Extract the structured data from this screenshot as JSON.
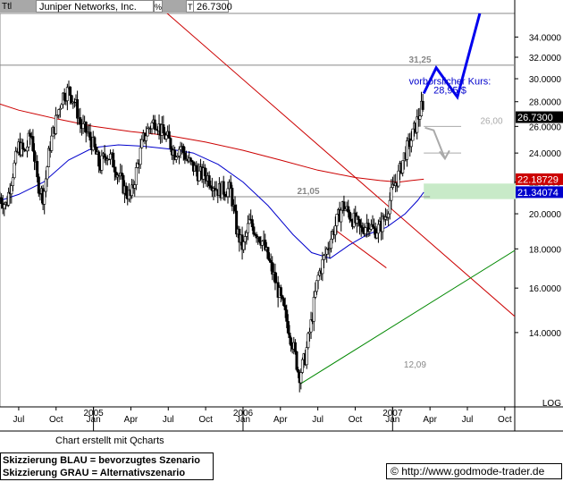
{
  "header": {
    "ticker_cell": "Ttl",
    "name": "Juniper Networks, Inc.",
    "unit_symbol": "%",
    "type_flag": "T",
    "last_price": "26.7300"
  },
  "footer": {
    "credit": "Chart erstellt mit Qcharts",
    "scenario_blue": "Skizzierung BLAU = bevorzugtes Szenario",
    "scenario_gray": "Skizzierung GRAU = Alternativszenario",
    "url": "http://www.godmode-trader.de"
  },
  "chart_data": {
    "type": "candlestick",
    "scale": "log",
    "ylim": [
      11.2,
      36.5
    ],
    "y_ticks": [
      14.0,
      16.0,
      18.0,
      20.0,
      22.0,
      24.0,
      26.0,
      28.0,
      30.0,
      32.0,
      34.0
    ],
    "y_tick_labels": [
      "14.0000",
      "16.0000",
      "18.0000",
      "20.0000",
      "22.0000",
      "24.0000",
      "26.0000",
      "28.0000",
      "30.0000",
      "32.0000",
      "34.0000"
    ],
    "y_axis_log_label": "LOG",
    "x_ticks": [
      {
        "label": "Jul",
        "month": 0
      },
      {
        "label": "Oct",
        "month": 3
      },
      {
        "label": "Jan",
        "month": 6
      },
      {
        "label": "Apr",
        "month": 9
      },
      {
        "label": "Jul",
        "month": 12
      },
      {
        "label": "Oct",
        "month": 15
      },
      {
        "label": "Jan",
        "month": 18
      },
      {
        "label": "Apr",
        "month": 21
      },
      {
        "label": "Jul",
        "month": 24
      },
      {
        "label": "Oct",
        "month": 27
      },
      {
        "label": "Jan",
        "month": 30
      },
      {
        "label": "Apr",
        "month": 33
      },
      {
        "label": "Jul",
        "month": 36
      },
      {
        "label": "Oct",
        "month": 39
      }
    ],
    "year_labels": [
      {
        "label": "2005",
        "month": 6
      },
      {
        "label": "2006",
        "month": 18
      },
      {
        "label": "2007",
        "month": 30
      }
    ],
    "price_keypoints": [
      [
        -1.5,
        21.0
      ],
      [
        -1.0,
        20.5
      ],
      [
        -0.5,
        22.5
      ],
      [
        0.0,
        24.5
      ],
      [
        0.5,
        24.0
      ],
      [
        1.0,
        25.5
      ],
      [
        1.5,
        22.0
      ],
      [
        2.0,
        21.0
      ],
      [
        2.5,
        24.5
      ],
      [
        3.0,
        26.5
      ],
      [
        3.5,
        28.5
      ],
      [
        4.0,
        29.0
      ],
      [
        4.5,
        28.0
      ],
      [
        5.0,
        26.0
      ],
      [
        5.5,
        25.5
      ],
      [
        6.0,
        24.5
      ],
      [
        6.5,
        23.0
      ],
      [
        7.0,
        24.0
      ],
      [
        7.5,
        23.5
      ],
      [
        8.0,
        22.5
      ],
      [
        8.5,
        21.5
      ],
      [
        9.0,
        21.0
      ],
      [
        9.5,
        23.0
      ],
      [
        10.0,
        25.0
      ],
      [
        10.5,
        26.0
      ],
      [
        11.0,
        26.5
      ],
      [
        11.5,
        25.5
      ],
      [
        12.0,
        25.0
      ],
      [
        12.5,
        24.0
      ],
      [
        13.0,
        24.5
      ],
      [
        13.5,
        23.5
      ],
      [
        14.0,
        23.0
      ],
      [
        14.5,
        22.5
      ],
      [
        15.0,
        22.5
      ],
      [
        15.5,
        22.0
      ],
      [
        16.0,
        21.5
      ],
      [
        16.5,
        21.5
      ],
      [
        17.0,
        21.5
      ],
      [
        17.5,
        19.0
      ],
      [
        18.0,
        18.0
      ],
      [
        18.5,
        19.5
      ],
      [
        19.0,
        19.0
      ],
      [
        19.5,
        18.5
      ],
      [
        20.0,
        17.5
      ],
      [
        20.5,
        16.5
      ],
      [
        21.0,
        15.5
      ],
      [
        21.5,
        14.5
      ],
      [
        22.0,
        13.5
      ],
      [
        22.5,
        12.3
      ],
      [
        23.0,
        13.0
      ],
      [
        23.5,
        14.5
      ],
      [
        24.0,
        16.5
      ],
      [
        24.5,
        17.5
      ],
      [
        25.0,
        18.5
      ],
      [
        25.5,
        19.5
      ],
      [
        26.0,
        20.5
      ],
      [
        26.5,
        20.0
      ],
      [
        27.0,
        19.5
      ],
      [
        27.5,
        19.0
      ],
      [
        28.0,
        19.5
      ],
      [
        28.5,
        19.0
      ],
      [
        29.0,
        19.2
      ],
      [
        29.5,
        20.0
      ],
      [
        30.0,
        21.5
      ],
      [
        30.5,
        22.5
      ],
      [
        31.0,
        24.0
      ],
      [
        31.5,
        25.0
      ],
      [
        32.0,
        26.5
      ],
      [
        32.3,
        27.5
      ],
      [
        32.5,
        26.73
      ]
    ],
    "series": [
      {
        "name": "",
        "color": "#cc0000",
        "points": [
          [
            -1.5,
            27.8
          ],
          [
            0,
            27.3
          ],
          [
            3,
            26.6
          ],
          [
            6,
            26.0
          ],
          [
            9,
            25.6
          ],
          [
            12,
            25.3
          ],
          [
            15,
            24.8
          ],
          [
            18,
            24.2
          ],
          [
            21,
            23.5
          ],
          [
            24,
            22.8
          ],
          [
            27,
            22.3
          ],
          [
            29,
            22.1
          ],
          [
            30.5,
            22.0
          ],
          [
            31.5,
            22.1
          ],
          [
            32.5,
            22.19
          ]
        ]
      },
      {
        "name": "",
        "color": "#0000cc",
        "points": [
          [
            -1.5,
            20.8
          ],
          [
            0,
            21.2
          ],
          [
            2,
            22.0
          ],
          [
            4,
            23.5
          ],
          [
            6,
            24.4
          ],
          [
            8,
            24.6
          ],
          [
            10,
            24.5
          ],
          [
            12,
            24.3
          ],
          [
            14,
            24.0
          ],
          [
            16,
            23.2
          ],
          [
            18,
            22.0
          ],
          [
            20,
            20.5
          ],
          [
            22,
            18.8
          ],
          [
            23.5,
            17.8
          ],
          [
            25,
            17.5
          ],
          [
            26.5,
            18.2
          ],
          [
            28,
            18.8
          ],
          [
            29.5,
            19.2
          ],
          [
            31,
            20.0
          ],
          [
            32,
            20.8
          ],
          [
            32.5,
            21.34
          ]
        ]
      }
    ],
    "price_tags": [
      {
        "value": 26.73,
        "label": "26.7300",
        "bg": "#000000",
        "fg": "#ffffff"
      },
      {
        "value": 22.18729,
        "label": "22.18729",
        "bg": "#cc0000",
        "fg": "#ffffff"
      },
      {
        "value": 21.34074,
        "label": "21.34074",
        "bg": "#0000cc",
        "fg": "#ffffff"
      }
    ],
    "horizontal_levels": [
      {
        "value": 31.25,
        "label": "31,25",
        "x_from": -1.5,
        "x_to": 39.8,
        "color": "#888888"
      },
      {
        "value": 21.05,
        "label": "21,05",
        "x_from": 9.0,
        "x_to": 33.0,
        "color": "#888888"
      },
      {
        "value": 26.0,
        "label": "26,00",
        "x_from": 32.5,
        "x_to": 35.5,
        "color": "#aaaaaa"
      },
      {
        "value": 24.0,
        "label": "",
        "x_from": 32.5,
        "x_to": 35.5,
        "color": "#aaaaaa"
      }
    ],
    "trendlines": [
      {
        "color": "#cc0000",
        "from": [
          11.5,
          37.0
        ],
        "to": [
          40.0,
          14.6
        ]
      },
      {
        "color": "#008800",
        "from": [
          22.6,
          12.0
        ],
        "to": [
          40.0,
          18.0
        ]
      },
      {
        "color": "#cc0000",
        "from": [
          25.5,
          19.0
        ],
        "to": [
          29.5,
          17.0
        ]
      }
    ],
    "zones": [
      {
        "color": "#c8eac8",
        "y_from": 20.9,
        "y_to": 21.9,
        "x_from": 32.5,
        "x_to": 40.0
      }
    ],
    "scenario_blue": [
      [
        32.5,
        28.7
      ],
      [
        33.5,
        31.0
      ],
      [
        35.2,
        28.4
      ],
      [
        37.0,
        36.5
      ]
    ],
    "scenario_gray": [
      [
        32.6,
        25.9
      ],
      [
        33.3,
        25.7
      ],
      [
        34.2,
        23.6
      ]
    ],
    "annotations": [
      {
        "text": "vorbörslicher Kurs:",
        "x": 34.6,
        "y": 29.5,
        "color": "#0000cc"
      },
      {
        "text": "28,95 $",
        "x": 34.6,
        "y": 28.7,
        "color": "#0000cc"
      },
      {
        "text": "12,09",
        "x": 31.8,
        "y": 12.6,
        "color": "#888888"
      }
    ]
  }
}
